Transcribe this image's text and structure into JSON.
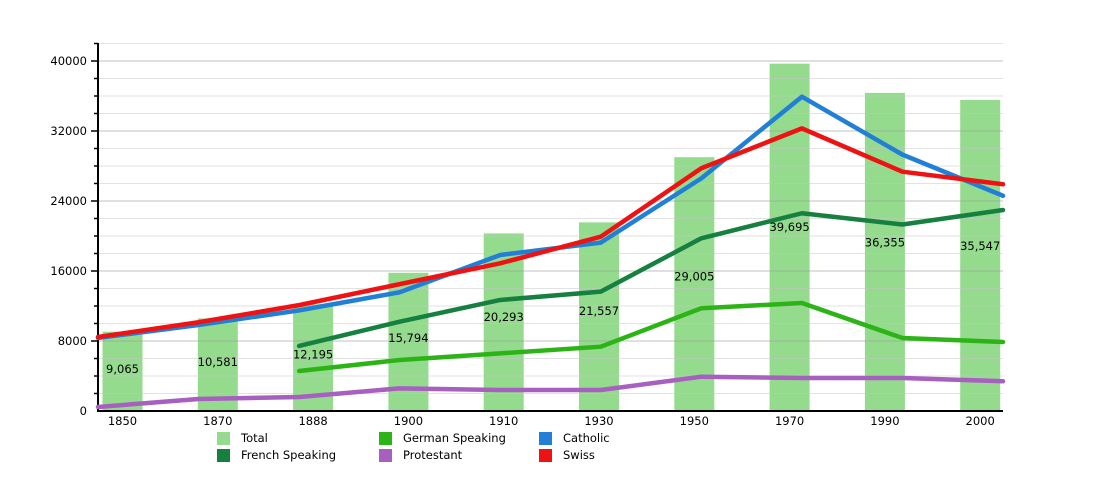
{
  "chart_data": {
    "type": "bar+line",
    "title": "",
    "categories": [
      "1850",
      "1870",
      "1888",
      "1900",
      "1910",
      "1930",
      "1950",
      "1970",
      "1990",
      "2000"
    ],
    "y_axis": {
      "ticks": [
        0,
        8000,
        16000,
        24000,
        32000,
        40000
      ],
      "minor_step": 2000,
      "ylim": [
        0,
        42000
      ],
      "grid": true
    },
    "bars": {
      "name": "Total",
      "color": "#95db8e",
      "values": [
        9065,
        10581,
        12195,
        15794,
        20293,
        21557,
        29005,
        39695,
        36355,
        35547
      ],
      "labels": [
        "9,065",
        "10,581",
        "12,195",
        "15,794",
        "20,293",
        "21,557",
        "29,005",
        "39,695",
        "36,355",
        "35,547"
      ]
    },
    "series": [
      {
        "name": "Protestant",
        "color": "#a75fc0",
        "values": [
          460,
          1370,
          1600,
          2590,
          2400,
          2400,
          3920,
          3770,
          3770,
          3400
        ]
      },
      {
        "name": "German Speaking",
        "color": "#2cb416",
        "values": [
          null,
          null,
          4570,
          5830,
          6590,
          7350,
          11740,
          12340,
          8340,
          7890
        ]
      },
      {
        "name": "French Speaking",
        "color": "#168040",
        "values": [
          null,
          null,
          7430,
          10210,
          12690,
          13640,
          19740,
          22600,
          21310,
          22970
        ]
      },
      {
        "name": "Catholic",
        "color": "#2180d6",
        "values": [
          8350,
          9830,
          11500,
          13570,
          17830,
          19240,
          26590,
          35920,
          29300,
          24600
        ]
      },
      {
        "name": "Swiss",
        "color": "#ee1212",
        "values": [
          8460,
          10140,
          12100,
          14500,
          16880,
          19920,
          27740,
          32300,
          27350,
          25910
        ]
      }
    ],
    "legend": {
      "rows": [
        [
          "Total",
          "German Speaking",
          "Catholic"
        ],
        [
          "French Speaking",
          "Protestant",
          "Swiss"
        ]
      ],
      "position": "bottom"
    }
  }
}
